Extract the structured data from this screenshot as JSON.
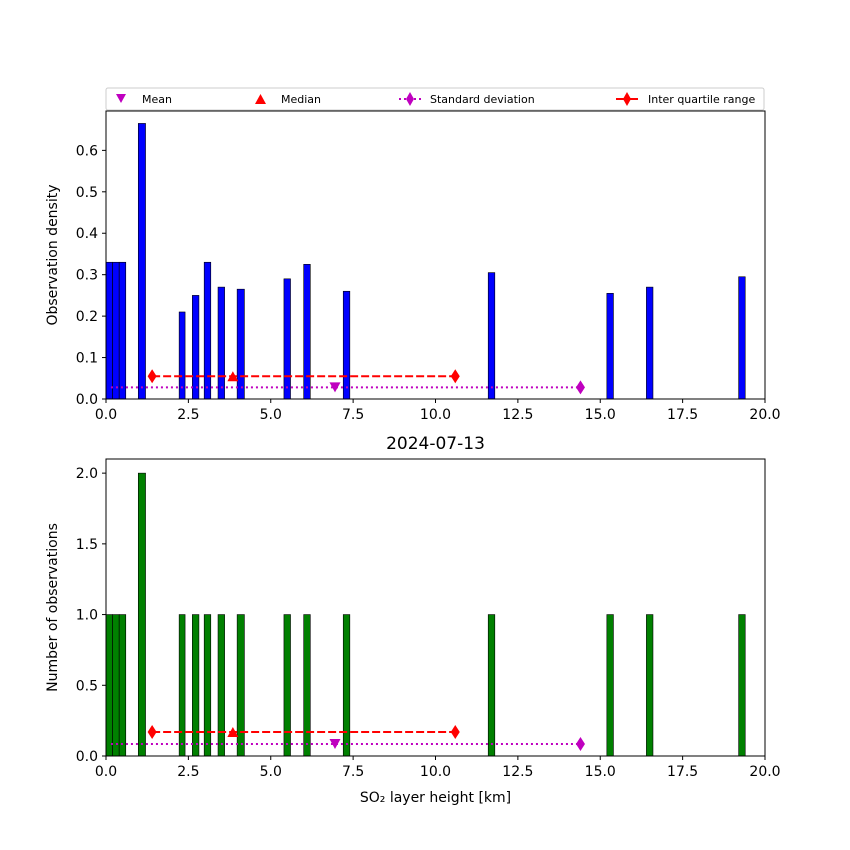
{
  "legend": {
    "mean": "Mean",
    "median": "Median",
    "std": "Standard deviation",
    "iqr": "Inter quartile range"
  },
  "colors": {
    "density_bars": "#0000ff",
    "count_bars": "#008000",
    "mean": "#bf00bf",
    "median": "#ff0000",
    "std": "#bf00bf",
    "iqr": "#ff0000"
  },
  "chart_data": [
    {
      "type": "bar",
      "ylabel": "Observation density",
      "xlabel": "",
      "xlim": [
        0,
        20
      ],
      "ylim": [
        0,
        0.695
      ],
      "xticks": [
        0,
        2.5,
        5,
        7.5,
        10,
        12.5,
        15,
        17.5,
        20
      ],
      "xtick_labels": [
        "0.0",
        "2.5",
        "5.0",
        "7.5",
        "10.0",
        "12.5",
        "15.0",
        "17.5",
        "20.0"
      ],
      "yticks": [
        0,
        0.1,
        0.2,
        0.3,
        0.4,
        0.5,
        0.6
      ],
      "ytick_labels": [
        "0.0",
        "0.1",
        "0.2",
        "0.3",
        "0.4",
        "0.5",
        "0.6"
      ],
      "bars": [
        {
          "x0": 0.0,
          "x1": 0.2,
          "value": 0.33
        },
        {
          "x0": 0.2,
          "x1": 0.4,
          "value": 0.33
        },
        {
          "x0": 0.4,
          "x1": 0.6,
          "value": 0.33
        },
        {
          "x0": 0.98,
          "x1": 1.2,
          "value": 0.665
        },
        {
          "x0": 2.22,
          "x1": 2.4,
          "value": 0.21
        },
        {
          "x0": 2.62,
          "x1": 2.82,
          "value": 0.25
        },
        {
          "x0": 2.98,
          "x1": 3.18,
          "value": 0.33
        },
        {
          "x0": 3.4,
          "x1": 3.6,
          "value": 0.27
        },
        {
          "x0": 3.98,
          "x1": 4.2,
          "value": 0.265
        },
        {
          "x0": 5.4,
          "x1": 5.6,
          "value": 0.29
        },
        {
          "x0": 6.0,
          "x1": 6.2,
          "value": 0.325
        },
        {
          "x0": 7.2,
          "x1": 7.4,
          "value": 0.26
        },
        {
          "x0": 11.6,
          "x1": 11.8,
          "value": 0.305
        },
        {
          "x0": 15.2,
          "x1": 15.4,
          "value": 0.255
        },
        {
          "x0": 16.4,
          "x1": 16.6,
          "value": 0.27
        },
        {
          "x0": 19.2,
          "x1": 19.4,
          "value": 0.295
        }
      ],
      "stats": {
        "iqr": {
          "x": [
            1.4,
            3.85,
            10.6
          ],
          "y": 0.055
        },
        "median": {
          "x": 3.85,
          "y": 0.055
        },
        "std": {
          "x": [
            0.15,
            14.4
          ],
          "y": 0.028
        },
        "mean": {
          "x": 6.95,
          "y": 0.028
        }
      }
    },
    {
      "type": "bar",
      "title": "2024-07-13",
      "ylabel": "Number of observations",
      "xlabel": "SO₂ layer height [km]",
      "xlim": [
        0,
        20
      ],
      "ylim": [
        0,
        2.1
      ],
      "xticks": [
        0,
        2.5,
        5,
        7.5,
        10,
        12.5,
        15,
        17.5,
        20
      ],
      "xtick_labels": [
        "0.0",
        "2.5",
        "5.0",
        "7.5",
        "10.0",
        "12.5",
        "15.0",
        "17.5",
        "20.0"
      ],
      "yticks": [
        0,
        0.5,
        1.0,
        1.5,
        2.0
      ],
      "ytick_labels": [
        "0.0",
        "0.5",
        "1.0",
        "1.5",
        "2.0"
      ],
      "bars": [
        {
          "x0": 0.0,
          "x1": 0.2,
          "value": 1
        },
        {
          "x0": 0.2,
          "x1": 0.4,
          "value": 1
        },
        {
          "x0": 0.4,
          "x1": 0.6,
          "value": 1
        },
        {
          "x0": 0.98,
          "x1": 1.2,
          "value": 2
        },
        {
          "x0": 2.22,
          "x1": 2.4,
          "value": 1
        },
        {
          "x0": 2.62,
          "x1": 2.82,
          "value": 1
        },
        {
          "x0": 2.98,
          "x1": 3.18,
          "value": 1
        },
        {
          "x0": 3.4,
          "x1": 3.6,
          "value": 1
        },
        {
          "x0": 3.98,
          "x1": 4.2,
          "value": 1
        },
        {
          "x0": 5.4,
          "x1": 5.6,
          "value": 1
        },
        {
          "x0": 6.0,
          "x1": 6.2,
          "value": 1
        },
        {
          "x0": 7.2,
          "x1": 7.4,
          "value": 1
        },
        {
          "x0": 11.6,
          "x1": 11.8,
          "value": 1
        },
        {
          "x0": 15.2,
          "x1": 15.4,
          "value": 1
        },
        {
          "x0": 16.4,
          "x1": 16.6,
          "value": 1
        },
        {
          "x0": 19.2,
          "x1": 19.4,
          "value": 1
        }
      ],
      "stats": {
        "iqr": {
          "x": [
            1.4,
            3.85,
            10.6
          ],
          "y": 0.17
        },
        "median": {
          "x": 3.85,
          "y": 0.17
        },
        "std": {
          "x": [
            0.15,
            14.4
          ],
          "y": 0.085
        },
        "mean": {
          "x": 6.95,
          "y": 0.085
        }
      }
    }
  ]
}
